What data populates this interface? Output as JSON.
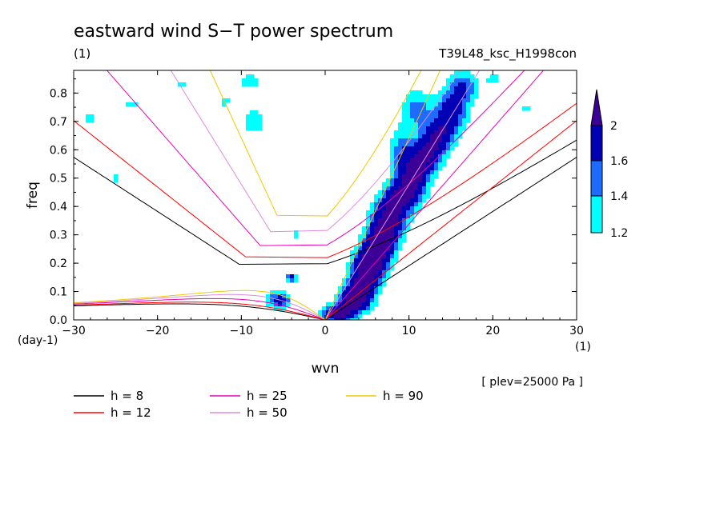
{
  "chart_data": {
    "type": "heatmap",
    "title": "eastward wind S−T power spectrum",
    "units_label": "(1)",
    "run_label": "T39L48_ksc_H1998con",
    "xlabel": "wvn",
    "ylabel": "freq",
    "x_unit_label": "(1)",
    "y_unit_label": "(day-1)",
    "xlim": [
      -30,
      30
    ],
    "ylim": [
      0,
      0.88
    ],
    "x_ticks": [
      -30,
      -20,
      -10,
      0,
      10,
      20,
      30
    ],
    "x_tick_labels": [
      "−30",
      "−20",
      "−10",
      "0",
      "10",
      "20",
      "30"
    ],
    "y_ticks": [
      0,
      0.1,
      0.2,
      0.3,
      0.4,
      0.5,
      0.6,
      0.7,
      0.8
    ],
    "y_tick_labels": [
      "0.0",
      "0.1",
      "0.2",
      "0.3",
      "0.4",
      "0.5",
      "0.6",
      "0.7",
      "0.8"
    ],
    "level_note": "[ plev=25000 Pa ]",
    "colorbar": {
      "levels": [
        1.2,
        1.4,
        1.6,
        2
      ],
      "level_labels": [
        "1.2",
        "1.4",
        "1.6",
        "2"
      ],
      "colors": [
        "#00ffff",
        "#1e6bff",
        "#0000b4",
        "#3c0096"
      ]
    },
    "dispersion_curves": [
      {
        "label": "h =  8",
        "h": 8,
        "color": "#000000"
      },
      {
        "label": "h = 12",
        "h": 12,
        "color": "#ff0000"
      },
      {
        "label": "h = 25",
        "h": 25,
        "color": "#e600b4"
      },
      {
        "label": "h = 50",
        "h": 50,
        "color": "#dc8cdc"
      },
      {
        "label": "h = 90",
        "h": 90,
        "color": "#f0c800"
      }
    ],
    "power_blobs": [
      {
        "x": 1.5,
        "y": 0.02,
        "sx": 1.2,
        "sy": 0.02,
        "v": 2.2
      },
      {
        "x": 3.5,
        "y": 0.07,
        "sx": 1.2,
        "sy": 0.03,
        "v": 2.4
      },
      {
        "x": 4.5,
        "y": 0.13,
        "sx": 1.2,
        "sy": 0.04,
        "v": 2.0
      },
      {
        "x": 5.5,
        "y": 0.2,
        "sx": 1.3,
        "sy": 0.04,
        "v": 2.3
      },
      {
        "x": 6.5,
        "y": 0.27,
        "sx": 1.2,
        "sy": 0.04,
        "v": 2.1
      },
      {
        "x": 7.5,
        "y": 0.35,
        "sx": 1.3,
        "sy": 0.05,
        "v": 2.2
      },
      {
        "x": 9.0,
        "y": 0.43,
        "sx": 1.3,
        "sy": 0.04,
        "v": 2.0
      },
      {
        "x": 10.5,
        "y": 0.5,
        "sx": 1.2,
        "sy": 0.05,
        "v": 2.1
      },
      {
        "x": 12.0,
        "y": 0.58,
        "sx": 1.3,
        "sy": 0.04,
        "v": 2.0
      },
      {
        "x": 13.5,
        "y": 0.65,
        "sx": 1.2,
        "sy": 0.04,
        "v": 1.9
      },
      {
        "x": 15.0,
        "y": 0.73,
        "sx": 1.3,
        "sy": 0.05,
        "v": 1.8
      },
      {
        "x": 16.5,
        "y": 0.82,
        "sx": 1.2,
        "sy": 0.04,
        "v": 1.6
      },
      {
        "x": 11.0,
        "y": 0.74,
        "sx": 1.2,
        "sy": 0.05,
        "v": 1.5
      },
      {
        "x": 9.0,
        "y": 0.6,
        "sx": 0.9,
        "sy": 0.06,
        "v": 1.45
      },
      {
        "x": -5.5,
        "y": 0.07,
        "sx": 0.9,
        "sy": 0.02,
        "v": 1.8
      },
      {
        "x": -4.0,
        "y": 0.15,
        "sx": 0.5,
        "sy": 0.01,
        "v": 1.7
      },
      {
        "x": -8.5,
        "y": 0.7,
        "sx": 1.0,
        "sy": 0.03,
        "v": 1.4
      },
      {
        "x": -9.0,
        "y": 0.84,
        "sx": 0.8,
        "sy": 0.02,
        "v": 1.35
      },
      {
        "x": -3.5,
        "y": 0.3,
        "sx": 0.4,
        "sy": 0.01,
        "v": 1.3
      },
      {
        "x": -23.0,
        "y": 0.76,
        "sx": 0.7,
        "sy": 0.015,
        "v": 1.3
      },
      {
        "x": -17.0,
        "y": 0.83,
        "sx": 0.6,
        "sy": 0.015,
        "v": 1.3
      },
      {
        "x": -28.0,
        "y": 0.71,
        "sx": 0.6,
        "sy": 0.015,
        "v": 1.3
      },
      {
        "x": -25.0,
        "y": 0.5,
        "sx": 0.6,
        "sy": 0.012,
        "v": 1.25
      },
      {
        "x": 20.0,
        "y": 0.85,
        "sx": 0.6,
        "sy": 0.015,
        "v": 1.3
      },
      {
        "x": 24.0,
        "y": 0.75,
        "sx": 0.5,
        "sy": 0.012,
        "v": 1.25
      },
      {
        "x": -12.0,
        "y": 0.77,
        "sx": 0.6,
        "sy": 0.015,
        "v": 1.3
      }
    ]
  }
}
